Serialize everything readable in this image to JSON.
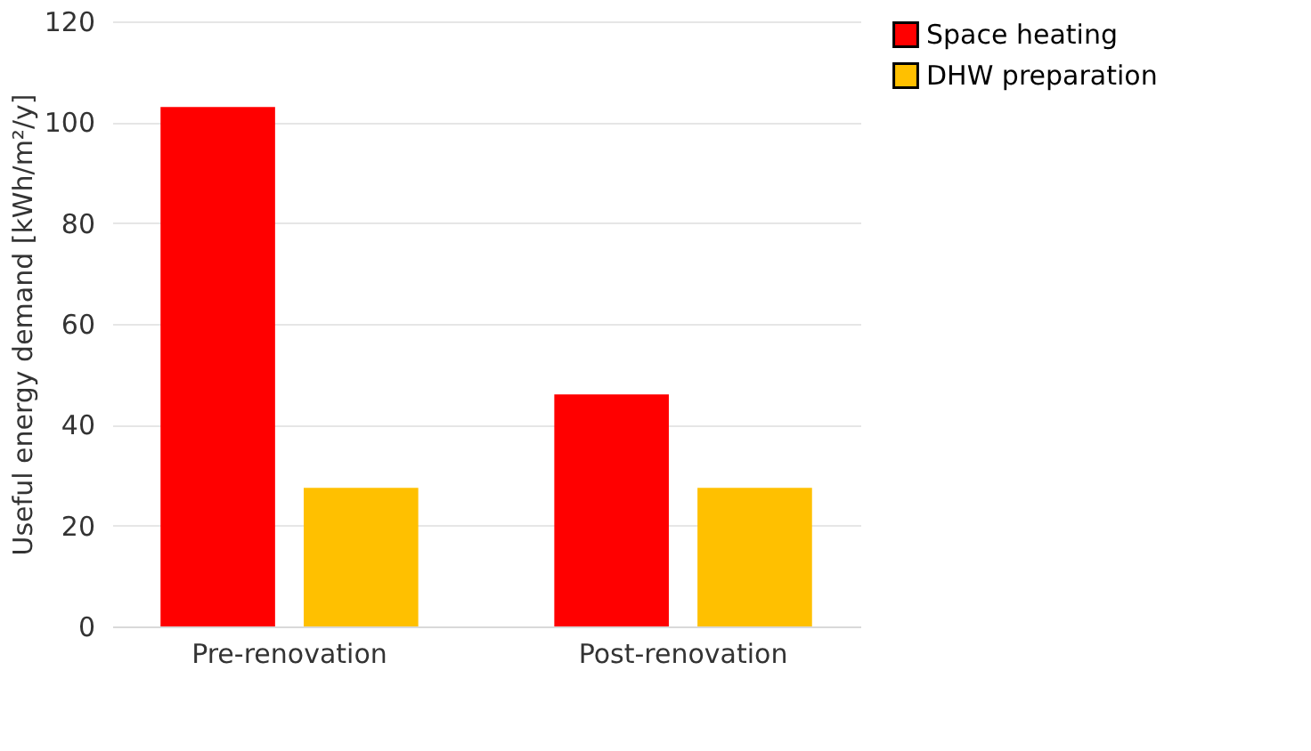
{
  "chart_data": {
    "type": "bar",
    "ylabel": "Useful energy demand [kWh/m²/y]",
    "categories": [
      "Pre-renovation",
      "Post-renovation"
    ],
    "series": [
      {
        "name": "Space heating",
        "color": "#ff0000",
        "values": [
          103,
          46
        ]
      },
      {
        "name": "DHW preparation",
        "color": "#ffc000",
        "values": [
          27.5,
          27.5
        ]
      }
    ],
    "ylim": [
      0,
      120
    ],
    "yticks": [
      0,
      20,
      40,
      60,
      80,
      100,
      120
    ],
    "grid": "y",
    "legend": "right"
  }
}
